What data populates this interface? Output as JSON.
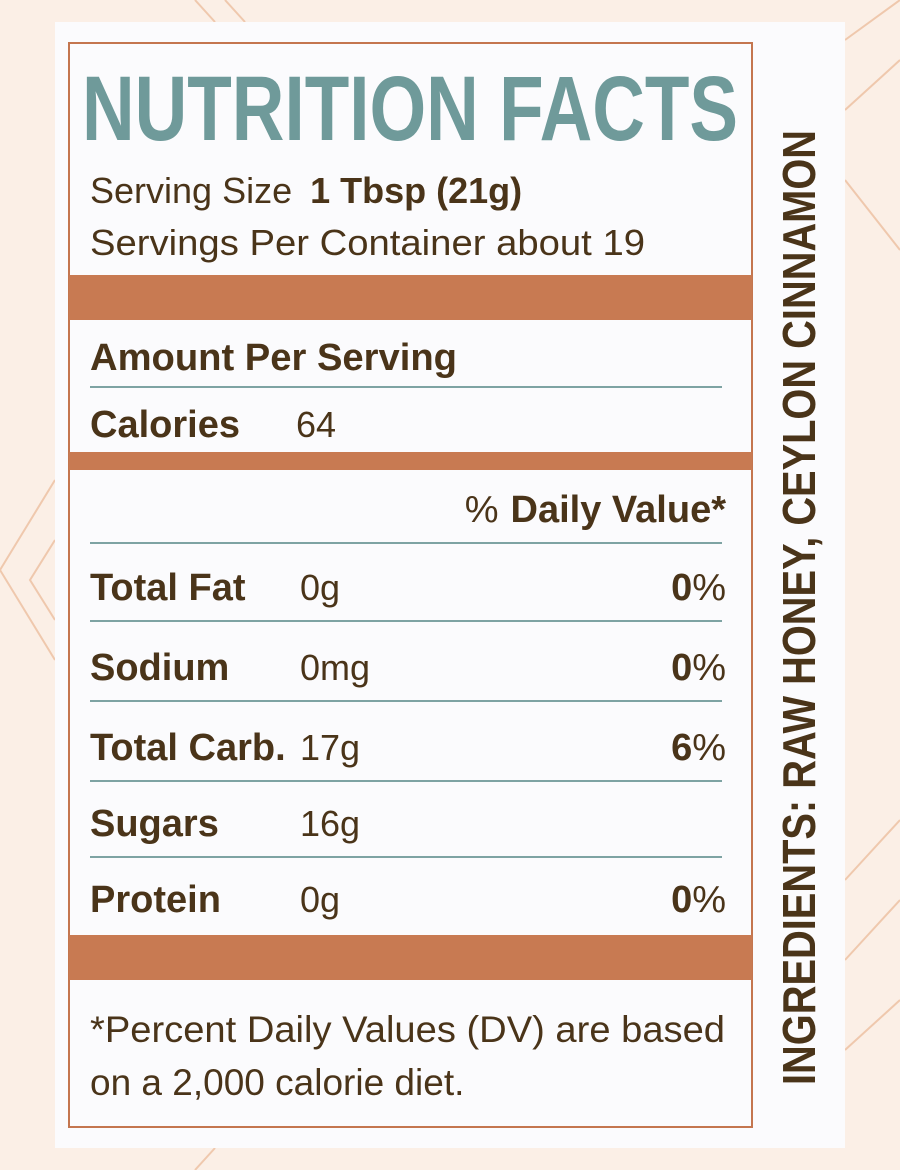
{
  "title": "NUTRITION FACTS",
  "serving_size": {
    "label": "Serving Size",
    "value": "1 Tbsp (21g)"
  },
  "servings_per_container": "Servings Per Container about 19",
  "amount_per_serving": "Amount Per Serving",
  "calories": {
    "label": "Calories",
    "value": "64"
  },
  "daily_value_header": {
    "prefix": "%",
    "label": "Daily Value*"
  },
  "rows": [
    {
      "name": "Total Fat",
      "amount": "0g",
      "dv_number": "0",
      "dv_unit": "%"
    },
    {
      "name": "Sodium",
      "amount": "0mg",
      "dv_number": "0",
      "dv_unit": "%"
    },
    {
      "name": "Total Carb.",
      "amount": "17g",
      "dv_number": "6",
      "dv_unit": "%"
    },
    {
      "name": "Sugars",
      "amount": "16g"
    },
    {
      "name": "Protein",
      "amount": "0g",
      "dv_number": "0",
      "dv_unit": "%"
    }
  ],
  "footnote": [
    "*Percent Daily Values (DV) are based",
    "on a 2,000 calorie diet."
  ],
  "ingredients": "INGREDIENTS: RAW HONEY, CEYLON CINNAMON"
}
